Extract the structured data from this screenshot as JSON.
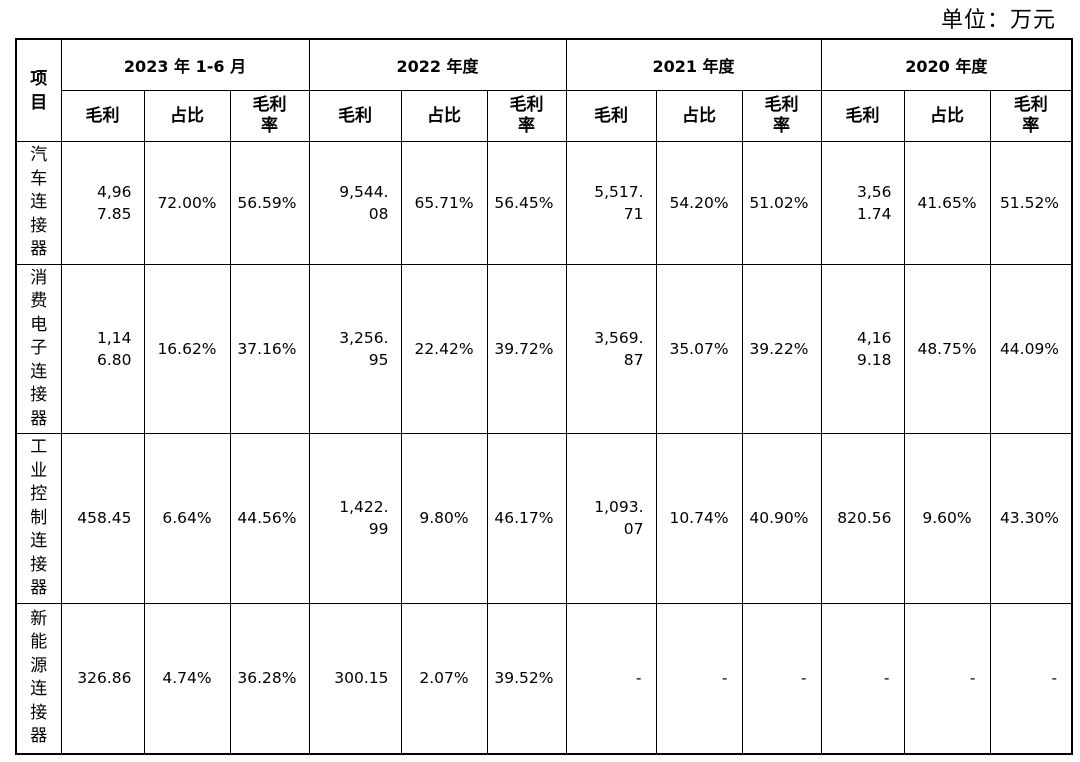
{
  "unit_label": "单位：万元",
  "corner": "项目",
  "years": [
    "2023 年 1-6 月",
    "2022 年度",
    "2021 年度",
    "2020 年度"
  ],
  "sub_headers": {
    "gross": "毛利",
    "share": "占比",
    "margin": "毛利率"
  },
  "rows": [
    {
      "name": "汽车连接器",
      "cells": [
        "4,967.85",
        "72.00%",
        "56.59%",
        "9,544.08",
        "65.71%",
        "56.45%",
        "5,517.71",
        "54.20%",
        "51.02%",
        "3,561.74",
        "41.65%",
        "51.52%"
      ]
    },
    {
      "name": "消费电子连接器",
      "cells": [
        "1,146.80",
        "16.62%",
        "37.16%",
        "3,256.95",
        "22.42%",
        "39.72%",
        "3,569.87",
        "35.07%",
        "39.22%",
        "4,169.18",
        "48.75%",
        "44.09%"
      ]
    },
    {
      "name": "工业控制连接器",
      "cells": [
        "458.45",
        "6.64%",
        "44.56%",
        "1,422.99",
        "9.80%",
        "46.17%",
        "1,093.07",
        "10.74%",
        "40.90%",
        "820.56",
        "9.60%",
        "43.30%"
      ]
    },
    {
      "name": "新能源连接器",
      "cells": [
        "326.86",
        "4.74%",
        "36.28%",
        "300.15",
        "2.07%",
        "39.52%",
        "-",
        "-",
        "-",
        "-",
        "-",
        "-"
      ]
    }
  ]
}
